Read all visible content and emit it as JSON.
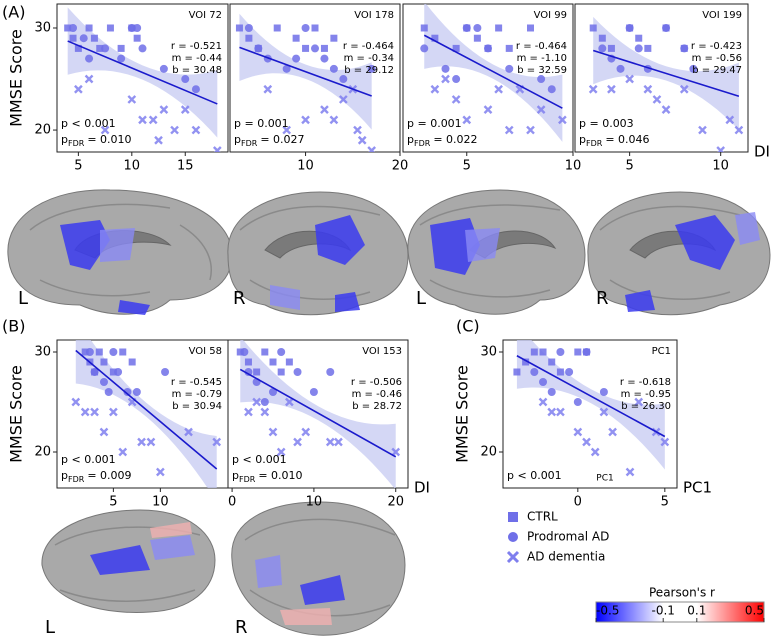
{
  "figure": {
    "panel_labels": [
      "(A)",
      "(B)",
      "(C)"
    ],
    "brain_labels": [
      "L",
      "R",
      "L",
      "R",
      "L",
      "R"
    ],
    "colorbar": {
      "title": "Pearson's r",
      "lim": [
        -0.5,
        0.5
      ],
      "ticks": [
        -0.5,
        -0.1,
        0.1,
        0.5
      ],
      "colors": [
        "#0000ff",
        "#ffffff",
        "#ff0000"
      ]
    }
  },
  "chart_data": [
    {
      "type": "scatter",
      "title": "VOI 72",
      "y_label": "MMSE Score",
      "xlim": [
        3,
        19
      ],
      "ylim": [
        17.85,
        32.35
      ],
      "xticks": [
        5,
        10,
        15
      ],
      "yticks": [
        20,
        30
      ],
      "fit": {
        "values": [
          -0.521,
          -0.44,
          30.48
        ],
        "value_labels": [
          "r = -0.521",
          "m = -0.44",
          "b = 30.48"
        ],
        "color": "#1a1acc"
      },
      "p_value": "p < 0.001",
      "p_fdr": {
        "symbol": "p",
        "subscript": "FDR",
        "text": "= 0.010"
      },
      "series": [
        {
          "name": "CTRL",
          "marker": "square",
          "color": "#6f6fe8",
          "x": [
            4,
            4.5,
            5,
            6,
            6.5,
            7,
            8,
            9,
            10,
            10.5
          ],
          "values": [
            30,
            29,
            28,
            30,
            29,
            28,
            30,
            28,
            30,
            29
          ]
        },
        {
          "name": "Prodromal AD",
          "marker": "circle",
          "color": "#6f6fe8",
          "x": [
            4.5,
            5.5,
            6,
            7.5,
            9,
            10,
            10.5,
            11,
            13,
            15,
            16
          ],
          "values": [
            30,
            29,
            27,
            28,
            27,
            30,
            30,
            28,
            26,
            25,
            24
          ]
        },
        {
          "name": "AD dementia",
          "marker": "x",
          "color": "#7f7fee",
          "x": [
            5,
            6,
            7.5,
            10,
            11,
            12,
            12.5,
            13,
            14,
            15,
            16,
            18
          ],
          "values": [
            24,
            25,
            20,
            23,
            21,
            21,
            19,
            22,
            20,
            22,
            20,
            18
          ]
        }
      ]
    },
    {
      "type": "scatter",
      "title": "VOI 178",
      "xlim": [
        2,
        20
      ],
      "ylim": [
        17.85,
        32.35
      ],
      "xticks": [
        10,
        20
      ],
      "fit": {
        "values": [
          -0.464,
          -0.34,
          29.12
        ],
        "value_labels": [
          "r = -0.464",
          "m = -0.34",
          "b = 29.12"
        ],
        "color": "#1a1acc"
      },
      "p_value": "p = 0.001",
      "p_fdr": {
        "symbol": "p",
        "subscript": "FDR",
        "text": "= 0.027"
      },
      "series": [
        {
          "name": "CTRL",
          "marker": "square",
          "color": "#6f6fe8",
          "x": [
            3,
            4,
            5,
            7,
            9,
            10,
            11,
            12,
            13
          ],
          "values": [
            30,
            29,
            28,
            30,
            29,
            28,
            30,
            28,
            29
          ]
        },
        {
          "name": "Prodromal AD",
          "marker": "circle",
          "color": "#6f6fe8",
          "x": [
            4,
            5,
            6,
            8,
            9,
            10,
            11,
            12,
            13,
            14,
            17
          ],
          "values": [
            30,
            28,
            27,
            26,
            27,
            30,
            28,
            27,
            26,
            25,
            26
          ]
        },
        {
          "name": "AD dementia",
          "marker": "x",
          "color": "#7f7fee",
          "x": [
            6,
            8,
            10,
            12,
            13,
            14,
            15,
            15.5,
            16,
            17
          ],
          "values": [
            24,
            20,
            21,
            22,
            21,
            23,
            24,
            20,
            19,
            18
          ]
        }
      ]
    },
    {
      "type": "scatter",
      "title": "VOI 99",
      "xlim": [
        2,
        10
      ],
      "ylim": [
        17.85,
        32.35
      ],
      "xticks": [
        5,
        10
      ],
      "fit": {
        "values": [
          -0.464,
          -1.1,
          32.59
        ],
        "value_labels": [
          "r = -0.464",
          "m = -1.10",
          "b = 32.59"
        ],
        "color": "#1a1acc"
      },
      "p_value": "p = 0.001",
      "p_fdr": {
        "symbol": "p",
        "subscript": "FDR",
        "text": "= 0.022"
      },
      "series": [
        {
          "name": "CTRL",
          "marker": "square",
          "color": "#6f6fe8",
          "x": [
            3,
            3.5,
            4.5,
            5,
            5.5,
            6,
            6.5,
            7,
            8
          ],
          "values": [
            30,
            29,
            28,
            30,
            29,
            28,
            30,
            28,
            30
          ]
        },
        {
          "name": "Prodromal AD",
          "marker": "circle",
          "color": "#6f6fe8",
          "x": [
            3,
            4,
            4.5,
            5,
            5.5,
            6,
            7,
            8.5,
            9
          ],
          "values": [
            28,
            26,
            25,
            30,
            30,
            28,
            26,
            25,
            24
          ]
        },
        {
          "name": "AD dementia",
          "marker": "x",
          "color": "#7f7fee",
          "x": [
            3.5,
            4,
            4.5,
            5,
            6,
            6.5,
            7,
            7.5,
            8,
            8.5,
            9.5
          ],
          "values": [
            24,
            25,
            23,
            21,
            22,
            24,
            20,
            24,
            20,
            22,
            21
          ]
        }
      ]
    },
    {
      "type": "scatter",
      "title": "VOI 199",
      "x_label": "DI",
      "xlim": [
        2,
        11.5
      ],
      "ylim": [
        17.85,
        32.35
      ],
      "xticks": [
        5,
        10
      ],
      "fit": {
        "values": [
          -0.423,
          -0.56,
          29.47
        ],
        "value_labels": [
          "r = -0.423",
          "m = -0.56",
          "b = 29.47"
        ],
        "color": "#1a1acc"
      },
      "p_value": "p = 0.003",
      "p_fdr": {
        "symbol": "p",
        "subscript": "FDR",
        "text": "= 0.046"
      },
      "series": [
        {
          "name": "CTRL",
          "marker": "square",
          "color": "#6f6fe8",
          "x": [
            3,
            3.5,
            4,
            5,
            5.5,
            6,
            7,
            8
          ],
          "values": [
            30,
            29,
            28,
            30,
            29,
            28,
            30,
            28
          ]
        },
        {
          "name": "Prodromal AD",
          "marker": "circle",
          "color": "#6f6fe8",
          "x": [
            3.5,
            4,
            4.5,
            5,
            5.5,
            6,
            7,
            8,
            8.5
          ],
          "values": [
            28,
            27,
            26,
            30,
            28,
            26,
            30,
            28,
            26
          ]
        },
        {
          "name": "AD dementia",
          "marker": "x",
          "color": "#7f7fee",
          "x": [
            3,
            4,
            5,
            6,
            6.5,
            7,
            8,
            9,
            10,
            10.5,
            11
          ],
          "values": [
            24,
            24,
            25,
            24,
            23,
            22,
            24,
            20,
            18,
            21,
            20
          ]
        }
      ]
    },
    {
      "type": "scatter",
      "title": "VOI 58",
      "y_label": "MMSE Score",
      "xlim": [
        -1,
        17.2
      ],
      "ylim": [
        16.4,
        31.2
      ],
      "xticks": [
        5,
        10
      ],
      "yticks": [
        20,
        30
      ],
      "fit": {
        "values": [
          -0.545,
          -0.79,
          30.94
        ],
        "value_labels": [
          "r = -0.545",
          "m = -0.79",
          "b = 30.94"
        ],
        "color": "#1a1acc"
      },
      "p_value": "p < 0.001",
      "p_fdr": {
        "symbol": "p",
        "subscript": "FDR",
        "text": "= 0.009"
      },
      "series": [
        {
          "name": "CTRL",
          "marker": "square",
          "color": "#6f6fe8",
          "x": [
            2,
            2.5,
            3,
            3.5,
            4,
            5,
            6,
            7
          ],
          "values": [
            30,
            29,
            28,
            30,
            29,
            28,
            30,
            29
          ]
        },
        {
          "name": "Prodromal AD",
          "marker": "circle",
          "color": "#6f6fe8",
          "x": [
            2.5,
            3,
            4,
            4.5,
            5,
            5.5,
            6.5,
            7.5,
            10.5
          ],
          "values": [
            30,
            28,
            27,
            26,
            30,
            28,
            26,
            26,
            28
          ]
        },
        {
          "name": "AD dementia",
          "marker": "x",
          "color": "#7f7fee",
          "x": [
            1,
            2,
            3,
            4,
            5,
            6,
            7,
            8,
            9,
            10,
            13,
            16
          ],
          "values": [
            25,
            24,
            24,
            22,
            24,
            20,
            25,
            21,
            21,
            18,
            22,
            21
          ]
        }
      ]
    },
    {
      "type": "scatter",
      "title": "VOI 153",
      "x_label": "DI",
      "xlim": [
        -0.5,
        21.5
      ],
      "ylim": [
        16.4,
        31.2
      ],
      "xticks": [
        0,
        10,
        20
      ],
      "fit": {
        "values": [
          -0.506,
          -0.46,
          28.72
        ],
        "value_labels": [
          "r = -0.506",
          "m = -0.46",
          "b = 28.72"
        ],
        "color": "#1a1acc"
      },
      "p_value": "p < 0.001",
      "p_fdr": {
        "symbol": "p",
        "subscript": "FDR",
        "text": "= 0.010"
      },
      "series": [
        {
          "name": "CTRL",
          "marker": "square",
          "color": "#6f6fe8",
          "x": [
            1,
            2,
            3,
            4,
            5,
            6,
            7
          ],
          "values": [
            30,
            29,
            28,
            30,
            29,
            28,
            29
          ]
        },
        {
          "name": "Prodromal AD",
          "marker": "circle",
          "color": "#6f6fe8",
          "x": [
            1.5,
            2,
            3,
            4,
            5,
            6,
            8,
            10,
            12
          ],
          "values": [
            30,
            28,
            27,
            25,
            26,
            30,
            28,
            26,
            28
          ]
        },
        {
          "name": "AD dementia",
          "marker": "x",
          "color": "#7f7fee",
          "x": [
            2,
            3,
            4,
            5,
            6,
            7,
            8,
            9,
            12,
            13,
            20
          ],
          "values": [
            24,
            25,
            24,
            22,
            20,
            25,
            21,
            22,
            21,
            21,
            20
          ]
        }
      ]
    },
    {
      "type": "scatter",
      "title": "PC1",
      "subtitle": "PC1",
      "y_label": "MMSE Score",
      "x_label": "PC1",
      "xlim": [
        -4.3,
        5.7
      ],
      "ylim": [
        16.4,
        31.2
      ],
      "xticks": [
        0,
        5
      ],
      "yticks": [
        20,
        30
      ],
      "fit": {
        "values": [
          -0.618,
          -0.95,
          26.3
        ],
        "value_labels": [
          "r = -0.618",
          "m = -0.95",
          "b = 26.30"
        ],
        "color": "#1a1acc"
      },
      "p_value": "p < 0.001",
      "series": [
        {
          "name": "CTRL",
          "marker": "square",
          "color": "#6f6fe8",
          "x": [
            -3.5,
            -3,
            -2.5,
            -2,
            -1.5,
            -1,
            0,
            0.5
          ],
          "values": [
            28,
            29,
            30,
            30,
            29,
            28,
            30,
            30
          ]
        },
        {
          "name": "Prodromal AD",
          "marker": "circle",
          "color": "#6f6fe8",
          "x": [
            -2.5,
            -2,
            -1.5,
            -1,
            -0.5,
            0,
            0.5,
            1.5
          ],
          "values": [
            28,
            27,
            26,
            30,
            28,
            25,
            30,
            26
          ]
        },
        {
          "name": "AD dementia",
          "marker": "x",
          "color": "#7f7fee",
          "x": [
            -2,
            -1.5,
            -1,
            0,
            0.5,
            1,
            1.5,
            2,
            3,
            3.5,
            4.5,
            5
          ],
          "values": [
            25,
            24,
            24,
            22,
            21,
            20,
            24,
            22,
            18,
            25,
            22,
            21
          ]
        }
      ]
    }
  ]
}
